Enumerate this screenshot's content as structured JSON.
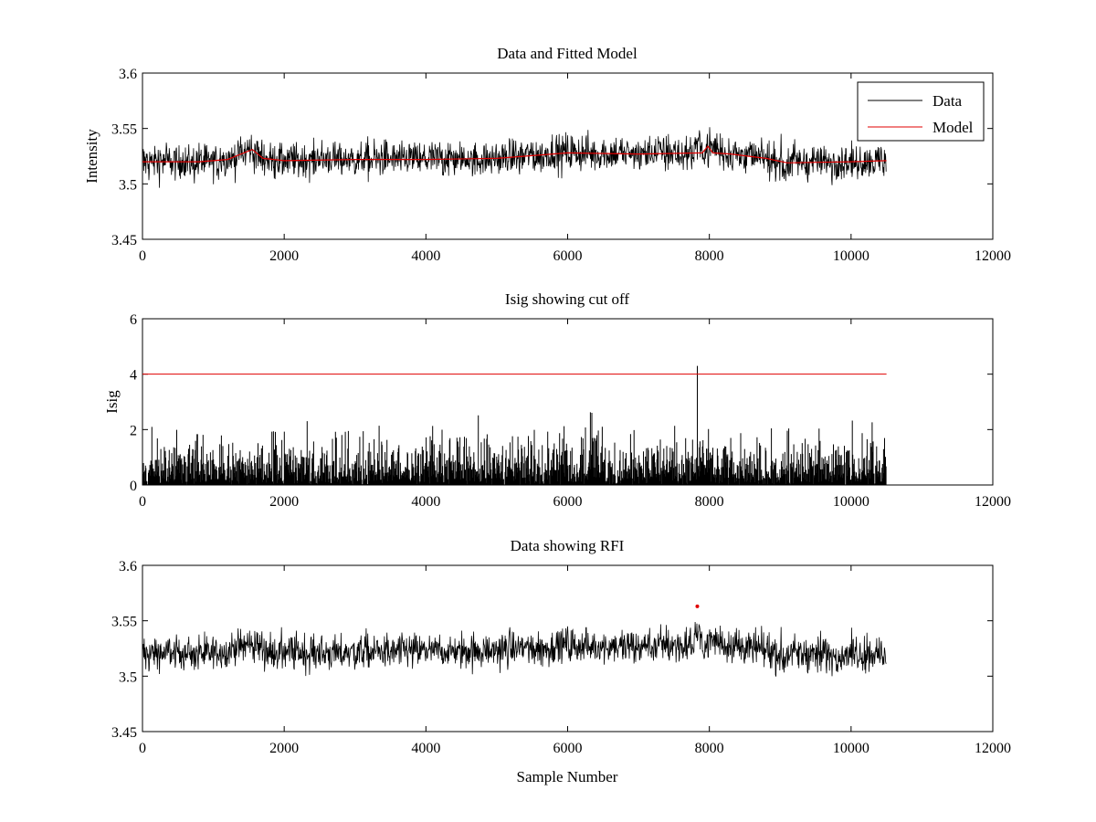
{
  "colors": {
    "data": "#000000",
    "model": "#e00000",
    "cutoff": "#e00000",
    "rfi": "#e00000",
    "background": "#ffffff"
  },
  "chart_data": [
    {
      "type": "line",
      "title": "Data and Fitted Model",
      "xlabel": "",
      "ylabel": "Intensity",
      "xlim": [
        0,
        12000
      ],
      "ylim": [
        3.45,
        3.6
      ],
      "xticks": [
        "0",
        "2000",
        "4000",
        "6000",
        "8000",
        "10000",
        "12000"
      ],
      "yticks": [
        "3.45",
        "3.5",
        "3.55",
        "3.6"
      ],
      "legend": {
        "position": "top-right",
        "entries": [
          "Data",
          "Model"
        ]
      },
      "series": [
        {
          "name": "Data",
          "kind": "noise",
          "n_samples": 10500,
          "noise_amplitude": 0.009,
          "baseline": {
            "x": [
              0,
              800,
              1200,
              1550,
              1700,
              2000,
              3000,
              4000,
              5000,
              6000,
              7000,
              7900,
              8000,
              8300,
              8800,
              9100,
              10000,
              10500
            ],
            "y": [
              3.52,
              3.52,
              3.522,
              3.53,
              3.523,
              3.521,
              3.522,
              3.522,
              3.523,
              3.528,
              3.527,
              3.528,
              3.533,
              3.528,
              3.523,
              3.52,
              3.52,
              3.521
            ]
          }
        },
        {
          "name": "Model",
          "x": [
            0,
            800,
            1200,
            1550,
            1700,
            2000,
            3000,
            4000,
            5000,
            6000,
            7000,
            7900,
            7980,
            8050,
            8300,
            8800,
            9100,
            10000,
            10500
          ],
          "y": [
            3.52,
            3.52,
            3.522,
            3.531,
            3.523,
            3.521,
            3.522,
            3.522,
            3.523,
            3.528,
            3.527,
            3.528,
            3.534,
            3.528,
            3.527,
            3.523,
            3.519,
            3.52,
            3.521
          ]
        }
      ]
    },
    {
      "type": "line",
      "title": "Isig showing cut off",
      "xlabel": "",
      "ylabel": "Isig",
      "xlim": [
        0,
        12000
      ],
      "ylim": [
        0,
        6
      ],
      "xticks": [
        "0",
        "2000",
        "4000",
        "6000",
        "8000",
        "10000",
        "12000"
      ],
      "yticks": [
        "0",
        "2",
        "4",
        "6"
      ],
      "series": [
        {
          "name": "Isig",
          "kind": "abs-noise",
          "n_samples": 10500,
          "typical_max": 3.2,
          "peak": {
            "x": 7830,
            "y": 4.3
          }
        },
        {
          "name": "Cut off",
          "x": [
            0,
            10500
          ],
          "y": [
            4,
            4
          ]
        }
      ]
    },
    {
      "type": "scatter",
      "title": "Data showing RFI",
      "xlabel": "Sample Number",
      "ylabel": "",
      "xlim": [
        0,
        12000
      ],
      "ylim": [
        3.45,
        3.6
      ],
      "xticks": [
        "0",
        "2000",
        "4000",
        "6000",
        "8000",
        "10000",
        "12000"
      ],
      "yticks": [
        "3.45",
        "3.5",
        "3.55",
        "3.6"
      ],
      "series": [
        {
          "name": "Data",
          "kind": "noise",
          "n_samples": 10500
        },
        {
          "name": "RFI",
          "x": [
            7830
          ],
          "y": [
            3.563
          ]
        }
      ]
    }
  ]
}
